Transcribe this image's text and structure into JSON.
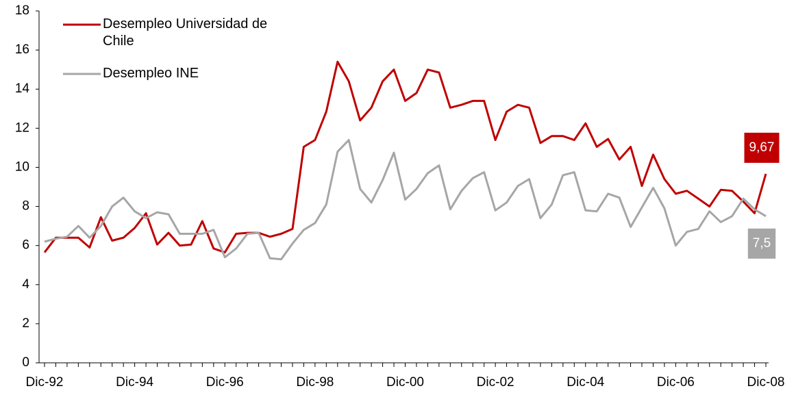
{
  "chart_data": {
    "type": "line",
    "categories": [
      "Dic-92",
      null,
      null,
      null,
      null,
      null,
      null,
      null,
      "Dic-94",
      null,
      null,
      null,
      null,
      null,
      null,
      null,
      "Dic-96",
      null,
      null,
      null,
      null,
      null,
      null,
      null,
      "Dic-98",
      null,
      null,
      null,
      null,
      null,
      null,
      null,
      "Dic-00",
      null,
      null,
      null,
      null,
      null,
      null,
      null,
      "Dic-02",
      null,
      null,
      null,
      null,
      null,
      null,
      null,
      "Dic-04",
      null,
      null,
      null,
      null,
      null,
      null,
      null,
      "Dic-06",
      null,
      null,
      null,
      null,
      null,
      null,
      null,
      "Dic-08"
    ],
    "series": [
      {
        "name": "Desempleo Universidad de Chile",
        "color": "#c00000",
        "values": [
          5.65,
          6.4,
          6.4,
          6.4,
          5.9,
          7.45,
          6.25,
          6.4,
          6.9,
          7.65,
          6.05,
          6.65,
          6.0,
          6.05,
          7.25,
          5.85,
          5.65,
          6.6,
          6.65,
          6.65,
          6.45,
          6.6,
          6.85,
          11.05,
          11.4,
          12.85,
          15.4,
          14.4,
          12.4,
          13.05,
          14.4,
          15.0,
          13.4,
          13.8,
          15.0,
          14.85,
          13.05,
          13.2,
          13.4,
          13.4,
          11.4,
          12.85,
          13.2,
          13.05,
          11.25,
          11.6,
          11.6,
          11.4,
          12.25,
          11.05,
          11.45,
          10.4,
          11.05,
          9.05,
          10.65,
          9.4,
          8.65,
          8.8,
          8.4,
          8.0,
          8.85,
          8.8,
          8.25,
          7.65,
          9.67
        ],
        "value_labels": [
          null,
          null,
          null,
          null,
          null,
          null,
          null,
          null,
          null,
          null,
          null,
          null,
          null,
          null,
          null,
          null,
          null,
          null,
          null,
          null,
          null,
          null,
          null,
          null,
          null,
          null,
          null,
          null,
          null,
          null,
          null,
          null,
          null,
          null,
          null,
          null,
          null,
          null,
          null,
          null,
          null,
          null,
          null,
          null,
          null,
          null,
          null,
          null,
          null,
          null,
          null,
          null,
          null,
          null,
          null,
          null,
          null,
          null,
          null,
          null,
          null,
          null,
          null,
          null,
          "9,67"
        ]
      },
      {
        "name": "Desempleo INE",
        "color": "#a6a6a6",
        "values": [
          6.2,
          6.35,
          6.45,
          7.0,
          6.4,
          7.0,
          8.0,
          8.45,
          7.75,
          7.4,
          7.7,
          7.6,
          6.6,
          6.6,
          6.6,
          6.8,
          5.4,
          5.85,
          6.6,
          6.65,
          5.35,
          5.3,
          6.1,
          6.8,
          7.15,
          8.1,
          10.8,
          11.4,
          8.9,
          8.2,
          9.35,
          10.75,
          8.35,
          8.9,
          9.7,
          10.1,
          7.85,
          8.8,
          9.45,
          9.75,
          7.8,
          8.2,
          9.05,
          9.4,
          7.4,
          8.1,
          9.6,
          9.75,
          7.8,
          7.75,
          8.65,
          8.45,
          6.95,
          7.95,
          8.95,
          7.9,
          6.0,
          6.7,
          6.85,
          7.75,
          7.2,
          7.5,
          8.4,
          7.85,
          7.5
        ],
        "value_labels": [
          null,
          null,
          null,
          null,
          null,
          null,
          null,
          null,
          null,
          null,
          null,
          null,
          null,
          null,
          null,
          null,
          null,
          null,
          null,
          null,
          null,
          null,
          null,
          null,
          null,
          null,
          null,
          null,
          null,
          null,
          null,
          null,
          null,
          null,
          null,
          null,
          null,
          null,
          null,
          null,
          null,
          null,
          null,
          null,
          null,
          null,
          null,
          null,
          null,
          null,
          null,
          null,
          null,
          null,
          null,
          null,
          null,
          null,
          null,
          null,
          null,
          null,
          null,
          null,
          "7,5"
        ]
      }
    ],
    "ylim": [
      0,
      18
    ],
    "yticks": [
      0,
      2,
      4,
      6,
      8,
      10,
      12,
      14,
      16,
      18
    ],
    "grid": false,
    "legend": "top-left"
  }
}
